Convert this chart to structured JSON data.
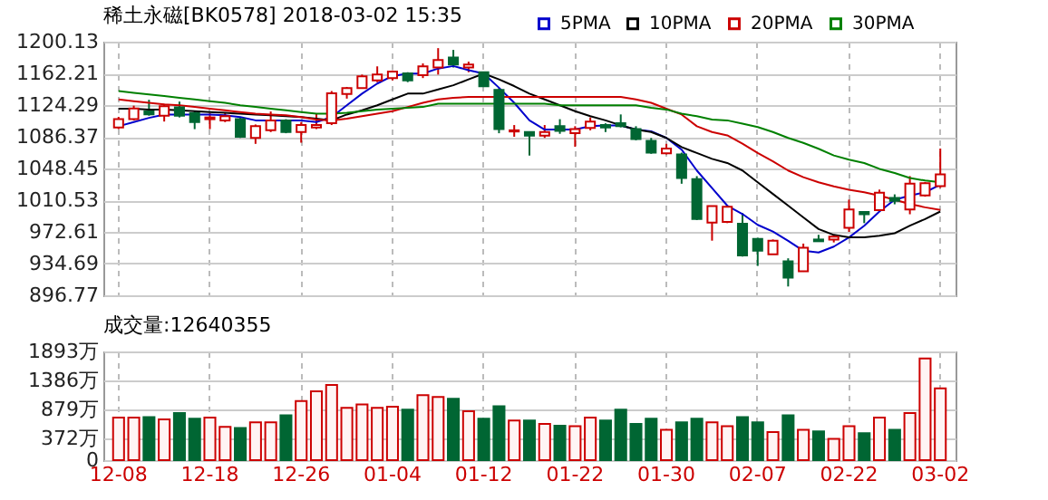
{
  "chart_data": [
    {
      "type": "candlestick",
      "title": "稀土永磁[BK0578] 2018-03-02 15:35",
      "categories": [
        null,
        null,
        null,
        null,
        null,
        null,
        null,
        null,
        null,
        null,
        null,
        null,
        null,
        null,
        null,
        null,
        null,
        null,
        null,
        null,
        null,
        null,
        null,
        null,
        null,
        null,
        null,
        null,
        null,
        null,
        null,
        null,
        null,
        null,
        null,
        null,
        null,
        null,
        null,
        null,
        null,
        null,
        null,
        null,
        null,
        null,
        null,
        null,
        null,
        null,
        null,
        null,
        null,
        null,
        null
      ],
      "ohlc": [
        [
          1097.6,
          1110.2,
          1095.5,
          1107.4
        ],
        [
          1107.4,
          1123.6,
          1106.0,
          1120.1
        ],
        [
          1116.6,
          1130.6,
          1111.6,
          1113.1
        ],
        [
          1111.6,
          1125.7,
          1104.6,
          1122.9
        ],
        [
          1121.5,
          1128.5,
          1109.5,
          1111.6
        ],
        [
          1114.5,
          1116.6,
          1095.5,
          1103.9
        ],
        [
          1107.4,
          1114.5,
          1095.5,
          1109.5
        ],
        [
          1106.0,
          1114.5,
          1103.9,
          1110.9
        ],
        [
          1107.4,
          1109.5,
          1085.0,
          1086.4
        ],
        [
          1085.0,
          1101.1,
          1077.9,
          1099.0
        ],
        [
          1094.1,
          1116.6,
          1092.0,
          1106.0
        ],
        [
          1106.0,
          1107.4,
          1090.6,
          1092.0
        ],
        [
          1092.0,
          1103.9,
          1079.3,
          1100.4
        ],
        [
          1097.5,
          1114.5,
          1095.5,
          1100.4
        ],
        [
          1102.5,
          1141.1,
          1100.4,
          1138.3
        ],
        [
          1137.6,
          1146.0,
          1132.0,
          1144.6
        ],
        [
          1144.6,
          1160.8,
          1143.9,
          1158.7
        ],
        [
          1153.8,
          1170.6,
          1151.7,
          1160.8
        ],
        [
          1156.6,
          1165.7,
          1153.8,
          1164.3
        ],
        [
          1162.2,
          1163.6,
          1151.7,
          1153.8
        ],
        [
          1160.1,
          1174.1,
          1156.6,
          1170.6
        ],
        [
          1169.2,
          1192.4,
          1160.8,
          1178.3
        ],
        [
          1181.2,
          1190.3,
          1169.2,
          1172.7
        ],
        [
          1169.2,
          1176.2,
          1163.6,
          1172.7
        ],
        [
          1163.6,
          1164.3,
          1146.0,
          1146.7
        ],
        [
          1142.5,
          1144.6,
          1090.6,
          1095.5
        ],
        [
          1092.7,
          1100.4,
          1086.4,
          1094.1
        ],
        [
          1092.0,
          1092.7,
          1063.9,
          1087.8
        ],
        [
          1087.8,
          1100.4,
          1085.0,
          1092.0
        ],
        [
          1099.0,
          1107.4,
          1089.9,
          1093.4
        ],
        [
          1090.6,
          1099.0,
          1074.4,
          1095.5
        ],
        [
          1096.9,
          1109.5,
          1094.1,
          1104.6
        ],
        [
          1100.4,
          1102.5,
          1092.0,
          1097.6
        ],
        [
          1102.5,
          1113.1,
          1097.6,
          1099.0
        ],
        [
          1095.5,
          1099.0,
          1082.2,
          1083.6
        ],
        [
          1081.5,
          1085.0,
          1066.0,
          1067.4
        ],
        [
          1066.7,
          1077.9,
          1065.3,
          1072.3
        ],
        [
          1065.3,
          1067.4,
          1030.2,
          1037.2
        ],
        [
          1035.8,
          1039.3,
          986.7,
          988.1
        ],
        [
          983.8,
          1003.5,
          962.1,
          1003.5
        ],
        [
          984.5,
          1004.2,
          983.1,
          1002.8
        ],
        [
          982.4,
          995.1,
          943.1,
          944.5
        ],
        [
          964.2,
          965.6,
          931.9,
          950.1
        ],
        [
          945.9,
          963.5,
          945.9,
          962.1
        ],
        [
          937.5,
          941.0,
          907.3,
          917.8
        ],
        [
          925.6,
          958.6,
          924.9,
          953.6
        ],
        [
          963.5,
          969.1,
          961.4,
          961.4
        ],
        [
          963.5,
          968.4,
          960.0,
          967.0
        ],
        [
          977.5,
          1011.2,
          972.6,
          999.3
        ],
        [
          996.5,
          996.5,
          983.1,
          993.7
        ],
        [
          998.6,
          1023.2,
          996.5,
          1019.6
        ],
        [
          1013.3,
          1017.5,
          1005.6,
          1009.8
        ],
        [
          999.3,
          1039.3,
          993.7,
          1030.2
        ],
        [
          1016.2,
          1032.3,
          1014.7,
          1030.9
        ],
        [
          1027.4,
          1072.3,
          1025.3,
          1041.4
        ]
      ],
      "colors": [
        "#cc0000",
        "#cc0000",
        "#006633",
        "#cc0000",
        "#006633",
        "#006633",
        "#cc0000",
        "#cc0000",
        "#006633",
        "#cc0000",
        "#cc0000",
        "#006633",
        "#cc0000",
        "#cc0000",
        "#cc0000",
        "#cc0000",
        "#cc0000",
        "#cc0000",
        "#cc0000",
        "#006633",
        "#cc0000",
        "#cc0000",
        "#006633",
        "#cc0000",
        "#006633",
        "#006633",
        "#cc0000",
        "#006633",
        "#cc0000",
        "#006633",
        "#cc0000",
        "#cc0000",
        "#006633",
        "#006633",
        "#006633",
        "#006633",
        "#cc0000",
        "#006633",
        "#006633",
        "#cc0000",
        "#cc0000",
        "#006633",
        "#006633",
        "#cc0000",
        "#006633",
        "#cc0000",
        "#006633",
        "#cc0000",
        "#cc0000",
        "#006633",
        "#cc0000",
        "#006633",
        "#cc0000",
        "#cc0000",
        "#cc0000"
      ],
      "series": [
        {
          "name": "5PMA",
          "type": "line",
          "color": "#0000cc",
          "values": [
            1099,
            1104,
            1109,
            1113,
            1113,
            1113,
            1113,
            1112,
            1110,
            1106,
            1106,
            1106,
            1106,
            1104,
            1110,
            1124,
            1138,
            1150,
            1159,
            1162,
            1162,
            1168,
            1171,
            1166,
            1162,
            1145,
            1127,
            1106,
            1095,
            1095,
            1095,
            1099,
            1100,
            1100,
            1095,
            1093,
            1085,
            1071,
            1046,
            1025,
            1004,
            994,
            981,
            973,
            962,
            950,
            948,
            955,
            966,
            980,
            997,
            1011,
            1016,
            1020,
            1029
          ]
        },
        {
          "name": "10PMA",
          "type": "line",
          "color": "#000000",
          "values": [
            1120,
            1120,
            1119,
            1119,
            1118,
            1117,
            1116,
            1115,
            1114,
            1113,
            1112,
            1111,
            1110,
            1108,
            1106,
            1113,
            1118,
            1124,
            1131,
            1138,
            1138,
            1143,
            1148,
            1155,
            1162,
            1155,
            1147,
            1138,
            1131,
            1124,
            1117,
            1111,
            1106,
            1100,
            1095,
            1092,
            1085,
            1074,
            1067,
            1060,
            1055,
            1046,
            1032,
            1018,
            1004,
            990,
            976,
            969,
            966,
            966,
            968,
            971,
            980,
            988,
            997
          ]
        },
        {
          "name": "20PMA",
          "type": "line",
          "color": "#cc0000",
          "values": [
            1131,
            1129,
            1127,
            1125,
            1124,
            1122,
            1120,
            1118,
            1116,
            1114,
            1113,
            1112,
            1110,
            1107,
            1106,
            1108,
            1111,
            1114,
            1117,
            1122,
            1127,
            1131,
            1133,
            1134,
            1134,
            1134,
            1134,
            1134,
            1134,
            1134,
            1134,
            1134,
            1134,
            1134,
            1131,
            1127,
            1120,
            1113,
            1099,
            1092,
            1088,
            1078,
            1067,
            1057,
            1046,
            1038,
            1032,
            1027,
            1023,
            1020,
            1016,
            1011,
            1006,
            1002,
            999
          ]
        },
        {
          "name": "30PMA",
          "type": "line",
          "color": "#008000",
          "values": [
            1141,
            1139,
            1137,
            1135,
            1133,
            1131,
            1129,
            1127,
            1124,
            1122,
            1120,
            1118,
            1116,
            1114,
            1114,
            1115,
            1117,
            1119,
            1120,
            1121,
            1122,
            1126,
            1126,
            1126,
            1126,
            1126,
            1126,
            1126,
            1126,
            1124,
            1124,
            1124,
            1124,
            1124,
            1124,
            1121,
            1119,
            1114,
            1111,
            1107,
            1106,
            1102,
            1098,
            1092,
            1085,
            1079,
            1072,
            1064,
            1059,
            1055,
            1048,
            1043,
            1037,
            1034,
            1032
          ]
        }
      ],
      "ylim": [
        896.77,
        1200.13
      ],
      "yticks": [
        896.77,
        934.69,
        972.61,
        1010.53,
        1048.45,
        1086.37,
        1124.29,
        1162.21,
        1200.13
      ],
      "grid": true,
      "legend": "top right",
      "tick_labels": "y"
    },
    {
      "type": "bar",
      "title": "成交量:12640355",
      "categories": [
        "12-08",
        null,
        null,
        null,
        null,
        null,
        "12-18",
        null,
        null,
        null,
        null,
        null,
        "12-26",
        null,
        null,
        null,
        null,
        null,
        "01-04",
        null,
        null,
        null,
        null,
        null,
        "01-12",
        null,
        null,
        null,
        null,
        null,
        "01-22",
        null,
        null,
        null,
        null,
        null,
        "01-30",
        null,
        null,
        null,
        null,
        null,
        "02-07",
        null,
        null,
        null,
        null,
        null,
        "02-22",
        null,
        null,
        null,
        null,
        null,
        "03-02"
      ],
      "values": [
        740,
        740,
        750,
        710,
        820,
        720,
        740,
        580,
        560,
        660,
        660,
        780,
        1030,
        1200,
        1310,
        910,
        970,
        910,
        930,
        880,
        1130,
        1100,
        1070,
        850,
        720,
        940,
        690,
        690,
        630,
        600,
        590,
        740,
        690,
        880,
        630,
        720,
        530,
        660,
        720,
        660,
        590,
        750,
        660,
        490,
        780,
        530,
        500,
        370,
        590,
        470,
        740,
        530,
        820,
        1770,
        1250
      ],
      "colors": [
        "#cc0000",
        "#cc0000",
        "#006633",
        "#cc0000",
        "#006633",
        "#006633",
        "#cc0000",
        "#cc0000",
        "#006633",
        "#cc0000",
        "#cc0000",
        "#006633",
        "#cc0000",
        "#cc0000",
        "#cc0000",
        "#cc0000",
        "#cc0000",
        "#cc0000",
        "#cc0000",
        "#006633",
        "#cc0000",
        "#cc0000",
        "#006633",
        "#cc0000",
        "#006633",
        "#006633",
        "#cc0000",
        "#006633",
        "#cc0000",
        "#006633",
        "#cc0000",
        "#cc0000",
        "#006633",
        "#006633",
        "#006633",
        "#006633",
        "#cc0000",
        "#006633",
        "#006633",
        "#cc0000",
        "#cc0000",
        "#006633",
        "#006633",
        "#cc0000",
        "#006633",
        "#cc0000",
        "#006633",
        "#cc0000",
        "#cc0000",
        "#006633",
        "#cc0000",
        "#006633",
        "#cc0000",
        "#cc0000",
        "#cc0000"
      ],
      "ylim": [
        0,
        1893
      ],
      "yticks": [
        0,
        {
          "value": 372,
          "label": "372万"
        },
        {
          "value": 879,
          "label": "879万"
        },
        {
          "value": 1386,
          "label": "1386万"
        },
        {
          "value": 1893,
          "label": "1893万"
        }
      ],
      "grid": true
    }
  ]
}
